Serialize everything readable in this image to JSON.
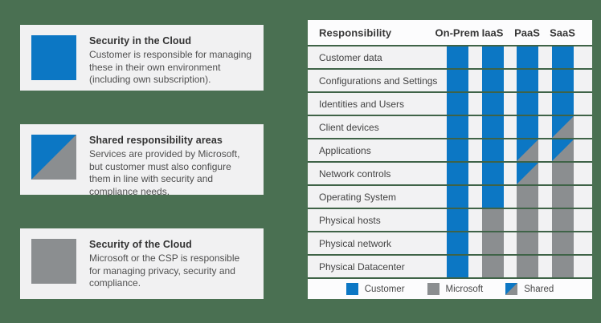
{
  "colors": {
    "customer_blue": "#0c77c4",
    "microsoft_gray": "#8b8e90",
    "background_green": "#4a7052",
    "separator_green": "#3f6347",
    "card_background": "#f1f1f2"
  },
  "cards": [
    {
      "icon": "customer",
      "title": "Security in the Cloud",
      "body": "Customer is responsible for managing these in their own environment (including own subscription)."
    },
    {
      "icon": "shared",
      "title": "Shared responsibility areas",
      "body": "Services are provided by Microsoft, but customer must also configure them in line with security and compliance needs."
    },
    {
      "icon": "microsoft",
      "title": "Security of the Cloud",
      "body": "Microsoft or the CSP is responsible for managing privacy, security and compliance."
    }
  ],
  "table": {
    "header": {
      "responsibility": "Responsibility",
      "columns": [
        "On-Prem",
        "IaaS",
        "PaaS",
        "SaaS"
      ]
    },
    "rows": [
      {
        "label": "Customer data",
        "cells": [
          "customer",
          "customer",
          "customer",
          "customer"
        ]
      },
      {
        "label": "Configurations and Settings",
        "cells": [
          "customer",
          "customer",
          "customer",
          "customer"
        ]
      },
      {
        "label": "Identities and Users",
        "cells": [
          "customer",
          "customer",
          "customer",
          "customer"
        ]
      },
      {
        "label": "Client devices",
        "cells": [
          "customer",
          "customer",
          "customer",
          "shared"
        ]
      },
      {
        "label": "Applications",
        "cells": [
          "customer",
          "customer",
          "shared",
          "shared"
        ]
      },
      {
        "label": "Network controls",
        "cells": [
          "customer",
          "customer",
          "shared",
          "microsoft"
        ]
      },
      {
        "label": "Operating System",
        "cells": [
          "customer",
          "customer",
          "microsoft",
          "microsoft"
        ]
      },
      {
        "label": "Physical hosts",
        "cells": [
          "customer",
          "microsoft",
          "microsoft",
          "microsoft"
        ]
      },
      {
        "label": "Physical network",
        "cells": [
          "customer",
          "microsoft",
          "microsoft",
          "microsoft"
        ]
      },
      {
        "label": "Physical Datacenter",
        "cells": [
          "customer",
          "microsoft",
          "microsoft",
          "microsoft"
        ]
      }
    ],
    "legend": [
      {
        "type": "customer",
        "label": "Customer"
      },
      {
        "type": "microsoft",
        "label": "Microsoft"
      },
      {
        "type": "shared",
        "label": "Shared"
      }
    ]
  }
}
